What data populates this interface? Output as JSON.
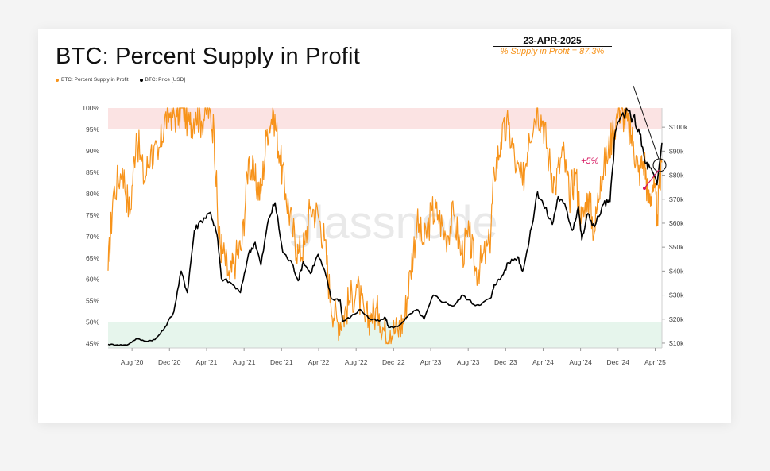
{
  "chart_data": {
    "type": "line",
    "title": "BTC: Percent Supply in Profit",
    "legend": [
      {
        "name": "BTC: Percent Supply in Profit",
        "color": "#f7931a"
      },
      {
        "name": "BTC: Price [USD]",
        "color": "#000000"
      }
    ],
    "legend_position": "top-left",
    "watermark": "glassnode",
    "x_range": [
      "2020-05-15",
      "2025-04-23"
    ],
    "x_ticks": [
      "Aug '20",
      "Dec '20",
      "Apr '21",
      "Aug '21",
      "Dec '21",
      "Apr '22",
      "Aug '22",
      "Dec '22",
      "Apr '23",
      "Aug '23",
      "Dec '23",
      "Apr '24",
      "Aug '24",
      "Dec '24",
      "Apr '25"
    ],
    "y_left": {
      "ylim": [
        44,
        100
      ],
      "ticks": [
        "45%",
        "50%",
        "55%",
        "60%",
        "65%",
        "70%",
        "75%",
        "80%",
        "85%",
        "90%",
        "95%",
        "100%"
      ]
    },
    "y_right": {
      "ylim": [
        8000,
        108000
      ],
      "scale": "linear",
      "ticks": [
        "$10k",
        "$20k",
        "$30k",
        "$40k",
        "$50k",
        "$60k",
        "$70k",
        "$80k",
        "$90k",
        "$100k"
      ]
    },
    "bands": [
      {
        "from": 95,
        "to": 100,
        "color": "#fbe3e3"
      },
      {
        "from": 44,
        "to": 50,
        "color": "#e6f5ec"
      }
    ],
    "series": [
      {
        "name": "BTC: Percent Supply in Profit",
        "axis": "left",
        "color": "#f7931a",
        "x": [
          "2020-05-15",
          "2020-06-01",
          "2020-07-01",
          "2020-07-25",
          "2020-08-15",
          "2020-09-10",
          "2020-10-01",
          "2020-10-25",
          "2020-11-15",
          "2020-12-05",
          "2020-12-25",
          "2021-01-15",
          "2021-02-05",
          "2021-02-25",
          "2021-03-15",
          "2021-04-05",
          "2021-04-25",
          "2021-05-10",
          "2021-05-25",
          "2021-06-15",
          "2021-07-05",
          "2021-07-25",
          "2021-08-15",
          "2021-09-05",
          "2021-09-25",
          "2021-10-15",
          "2021-11-05",
          "2021-11-25",
          "2021-12-15",
          "2022-01-05",
          "2022-01-25",
          "2022-02-15",
          "2022-03-05",
          "2022-03-30",
          "2022-04-20",
          "2022-05-10",
          "2022-06-01",
          "2022-06-18",
          "2022-07-10",
          "2022-08-05",
          "2022-08-30",
          "2022-09-20",
          "2022-10-15",
          "2022-11-05",
          "2022-11-20",
          "2022-12-15",
          "2023-01-05",
          "2023-01-25",
          "2023-02-15",
          "2023-03-10",
          "2023-04-05",
          "2023-04-25",
          "2023-05-20",
          "2023-06-15",
          "2023-07-10",
          "2023-08-05",
          "2023-08-25",
          "2023-09-15",
          "2023-10-10",
          "2023-10-25",
          "2023-11-15",
          "2023-12-10",
          "2024-01-05",
          "2024-01-25",
          "2024-02-15",
          "2024-03-12",
          "2024-04-01",
          "2024-04-20",
          "2024-05-10",
          "2024-06-05",
          "2024-06-25",
          "2024-07-15",
          "2024-08-05",
          "2024-08-25",
          "2024-09-15",
          "2024-10-05",
          "2024-10-25",
          "2024-11-12",
          "2024-12-05",
          "2024-12-17",
          "2025-01-05",
          "2025-01-20",
          "2025-02-05",
          "2025-02-25",
          "2025-03-10",
          "2025-03-25",
          "2025-04-08",
          "2025-04-23"
        ],
        "values": [
          62,
          80,
          86,
          75,
          94,
          83,
          90,
          88,
          97,
          99,
          98,
          100,
          96,
          99,
          97,
          100,
          95,
          70,
          66,
          60,
          65,
          68,
          88,
          83,
          80,
          95,
          99,
          89,
          80,
          72,
          66,
          68,
          77,
          75,
          69,
          55,
          50,
          51,
          55,
          58,
          50,
          52,
          52,
          47,
          48,
          48,
          51,
          62,
          73,
          68,
          76,
          75,
          70,
          75,
          66,
          70,
          62,
          64,
          68,
          85,
          92,
          96,
          86,
          82,
          94,
          100,
          97,
          88,
          82,
          90,
          79,
          85,
          73,
          80,
          71,
          84,
          88,
          94,
          100,
          99,
          95,
          92,
          85,
          88,
          78,
          82,
          75,
          87.3
        ]
      },
      {
        "name": "BTC: Price [USD]",
        "axis": "right",
        "unit": "USD",
        "color": "#000000",
        "x": [
          "2020-05-15",
          "2020-06-15",
          "2020-07-15",
          "2020-08-15",
          "2020-09-15",
          "2020-10-15",
          "2020-11-10",
          "2020-12-15",
          "2021-01-08",
          "2021-01-28",
          "2021-02-20",
          "2021-03-13",
          "2021-04-14",
          "2021-05-05",
          "2021-05-19",
          "2021-06-20",
          "2021-07-20",
          "2021-08-15",
          "2021-09-06",
          "2021-09-25",
          "2021-10-20",
          "2021-11-10",
          "2021-12-05",
          "2022-01-05",
          "2022-01-24",
          "2022-02-10",
          "2022-03-05",
          "2022-03-30",
          "2022-04-25",
          "2022-05-12",
          "2022-06-10",
          "2022-06-18",
          "2022-07-15",
          "2022-08-15",
          "2022-09-15",
          "2022-10-15",
          "2022-11-05",
          "2022-11-15",
          "2022-12-15",
          "2023-01-15",
          "2023-02-15",
          "2023-03-10",
          "2023-04-10",
          "2023-05-15",
          "2023-06-15",
          "2023-07-15",
          "2023-08-20",
          "2023-09-15",
          "2023-10-15",
          "2023-10-25",
          "2023-11-15",
          "2023-12-10",
          "2024-01-10",
          "2024-01-25",
          "2024-02-15",
          "2024-03-14",
          "2024-04-01",
          "2024-05-01",
          "2024-05-20",
          "2024-06-15",
          "2024-07-05",
          "2024-07-25",
          "2024-08-05",
          "2024-08-25",
          "2024-09-15",
          "2024-10-15",
          "2024-11-05",
          "2024-11-22",
          "2024-12-17",
          "2025-01-20",
          "2025-02-10",
          "2025-02-28",
          "2025-03-15",
          "2025-04-07",
          "2025-04-23"
        ],
        "values": [
          9500,
          9300,
          9200,
          11800,
          10800,
          11500,
          15300,
          23000,
          40000,
          31000,
          57000,
          61000,
          64500,
          55000,
          37000,
          35000,
          31000,
          47000,
          52000,
          42500,
          62000,
          68500,
          48000,
          43000,
          36000,
          44000,
          39000,
          47000,
          38000,
          28500,
          28000,
          19000,
          21000,
          24000,
          20000,
          19200,
          20500,
          16500,
          16900,
          21000,
          24000,
          20000,
          30000,
          27000,
          25500,
          30000,
          26000,
          26500,
          29000,
          34500,
          37000,
          43500,
          46000,
          40000,
          52000,
          73000,
          68000,
          59500,
          71000,
          66000,
          57000,
          67000,
          53000,
          64000,
          58500,
          68000,
          69000,
          98000,
          106000,
          104500,
          97000,
          85000,
          83000,
          76000,
          93500
        ]
      }
    ],
    "annotations": {
      "date": "23-APR-2025",
      "supply_in_profit": "% Supply in Profit = 87.3%",
      "change": "+5%"
    }
  }
}
